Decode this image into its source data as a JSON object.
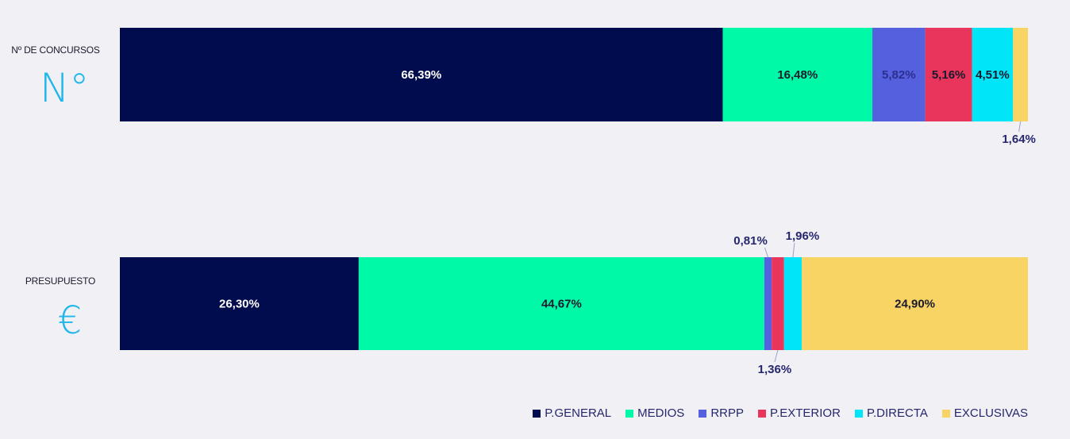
{
  "chart_data": {
    "type": "bar",
    "stacked": true,
    "normalized": true,
    "orientation": "horizontal",
    "categories": [
      "Nº DE CONCURSOS",
      "PRESUPUESTO"
    ],
    "category_symbols": [
      "N°",
      "€"
    ],
    "series": [
      {
        "name": "P.GENERAL",
        "color": "#000c4d",
        "values": [
          66.39,
          26.3
        ],
        "labels": [
          "66,39%",
          "26,30%"
        ]
      },
      {
        "name": "MEDIOS",
        "color": "#00f9a6",
        "values": [
          16.48,
          44.67
        ],
        "labels": [
          "16,48%",
          "44,67%"
        ]
      },
      {
        "name": "RRPP",
        "color": "#5560df",
        "values": [
          5.82,
          0.81
        ],
        "labels": [
          "5,82%",
          "0,81%"
        ]
      },
      {
        "name": "P.EXTERIOR",
        "color": "#e9345b",
        "values": [
          5.16,
          1.36
        ],
        "labels": [
          "5,16%",
          "1,36%"
        ]
      },
      {
        "name": "P.DIRECTA",
        "color": "#00e5f7",
        "values": [
          4.51,
          1.96
        ],
        "labels": [
          "4,51%",
          "1,96%"
        ]
      },
      {
        "name": "EXCLUSIVAS",
        "color": "#f8d464",
        "values": [
          1.64,
          24.9
        ],
        "labels": [
          "1,64%",
          "24,90%"
        ]
      }
    ],
    "legend_position": "bottom-right",
    "grid": false
  }
}
